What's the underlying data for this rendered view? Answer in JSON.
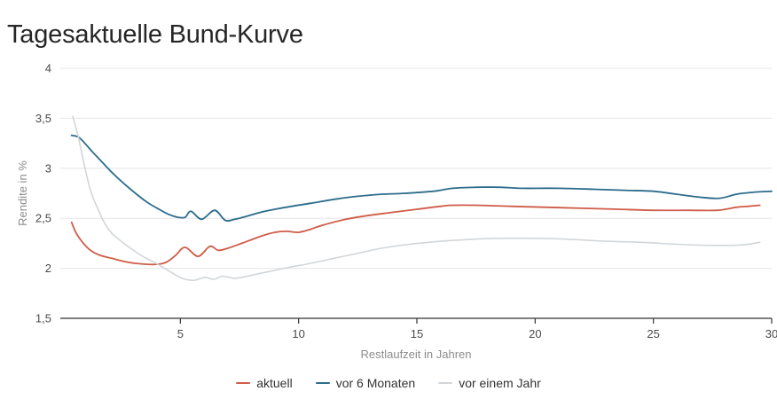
{
  "title": "Tagesaktuelle Bund-Kurve",
  "colors": {
    "accent_red": "#cf5b47",
    "accent_blue": "#2c6c8c",
    "accent_gray": "#d2d6d9",
    "gridline": "#e6e6e6",
    "axis_line": "#333333",
    "tick_text": "#4a4a4a",
    "axis_title_text": "#8c8c8c",
    "legend_text": "#333333"
  },
  "chart_data": {
    "type": "line",
    "title": "Tagesaktuelle Bund-Kurve",
    "xlabel": "Restlaufzeit in Jahren",
    "ylabel": "Rendite in %",
    "xlim": [
      0,
      30
    ],
    "ylim": [
      1.5,
      4
    ],
    "grid": "horizontal",
    "legend_position": "bottom",
    "xticks": {
      "values": [
        5,
        10,
        15,
        20,
        25,
        30
      ],
      "labels": [
        "5",
        "10",
        "15",
        "20",
        "25",
        "30"
      ]
    },
    "yticks": {
      "values": [
        4,
        3.5,
        3,
        2.5,
        2,
        1.5
      ],
      "labels": [
        "4",
        "3,5",
        "3",
        "2,5",
        "2",
        "1,5"
      ]
    },
    "series": [
      {
        "name": "aktuell",
        "color": "#cf5b47",
        "width": 1.8,
        "points": [
          [
            0.4,
            2.46
          ],
          [
            0.6,
            2.35
          ],
          [
            0.9,
            2.25
          ],
          [
            1.2,
            2.18
          ],
          [
            1.6,
            2.13
          ],
          [
            2.1,
            2.1
          ],
          [
            2.6,
            2.07
          ],
          [
            3.1,
            2.05
          ],
          [
            3.6,
            2.04
          ],
          [
            4.0,
            2.04
          ],
          [
            4.4,
            2.06
          ],
          [
            4.8,
            2.13
          ],
          [
            5.2,
            2.21
          ],
          [
            5.75,
            2.12
          ],
          [
            6.25,
            2.22
          ],
          [
            6.6,
            2.18
          ],
          [
            7.0,
            2.2
          ],
          [
            7.6,
            2.25
          ],
          [
            8.4,
            2.32
          ],
          [
            9.0,
            2.36
          ],
          [
            9.5,
            2.37
          ],
          [
            10.0,
            2.36
          ],
          [
            10.5,
            2.39
          ],
          [
            11.0,
            2.43
          ],
          [
            12.0,
            2.49
          ],
          [
            13.0,
            2.53
          ],
          [
            14.0,
            2.56
          ],
          [
            15.0,
            2.59
          ],
          [
            16.0,
            2.62
          ],
          [
            16.5,
            2.63
          ],
          [
            17.5,
            2.63
          ],
          [
            19.0,
            2.62
          ],
          [
            20.5,
            2.61
          ],
          [
            22.0,
            2.6
          ],
          [
            23.5,
            2.59
          ],
          [
            25.0,
            2.58
          ],
          [
            26.5,
            2.58
          ],
          [
            27.7,
            2.58
          ],
          [
            28.5,
            2.61
          ],
          [
            29.0,
            2.62
          ],
          [
            29.5,
            2.63
          ]
        ]
      },
      {
        "name": "vor 6 Monaten",
        "color": "#2c6c8c",
        "width": 1.8,
        "points": [
          [
            0.4,
            3.33
          ],
          [
            0.7,
            3.31
          ],
          [
            1.0,
            3.24
          ],
          [
            1.3,
            3.16
          ],
          [
            1.7,
            3.06
          ],
          [
            2.1,
            2.96
          ],
          [
            2.6,
            2.85
          ],
          [
            3.1,
            2.75
          ],
          [
            3.6,
            2.66
          ],
          [
            4.1,
            2.59
          ],
          [
            4.5,
            2.54
          ],
          [
            4.9,
            2.51
          ],
          [
            5.2,
            2.51
          ],
          [
            5.45,
            2.57
          ],
          [
            5.9,
            2.49
          ],
          [
            6.45,
            2.58
          ],
          [
            6.9,
            2.48
          ],
          [
            7.3,
            2.49
          ],
          [
            7.8,
            2.52
          ],
          [
            8.4,
            2.56
          ],
          [
            9.0,
            2.59
          ],
          [
            9.7,
            2.62
          ],
          [
            10.5,
            2.65
          ],
          [
            11.5,
            2.69
          ],
          [
            12.5,
            2.72
          ],
          [
            13.5,
            2.74
          ],
          [
            14.5,
            2.75
          ],
          [
            15.7,
            2.77
          ],
          [
            16.5,
            2.8
          ],
          [
            17.5,
            2.81
          ],
          [
            18.5,
            2.81
          ],
          [
            19.5,
            2.8
          ],
          [
            21.0,
            2.8
          ],
          [
            22.5,
            2.79
          ],
          [
            23.8,
            2.78
          ],
          [
            25.0,
            2.77
          ],
          [
            26.0,
            2.74
          ],
          [
            27.0,
            2.71
          ],
          [
            27.8,
            2.7
          ],
          [
            28.5,
            2.74
          ],
          [
            29.2,
            2.76
          ],
          [
            30.0,
            2.77
          ]
        ]
      },
      {
        "name": "vor einem Jahr",
        "color": "#d2d6d9",
        "width": 1.6,
        "points": [
          [
            0.45,
            3.52
          ],
          [
            0.7,
            3.3
          ],
          [
            0.95,
            3.02
          ],
          [
            1.2,
            2.78
          ],
          [
            1.5,
            2.6
          ],
          [
            1.8,
            2.45
          ],
          [
            2.1,
            2.35
          ],
          [
            2.5,
            2.27
          ],
          [
            2.9,
            2.2
          ],
          [
            3.4,
            2.12
          ],
          [
            3.9,
            2.06
          ],
          [
            4.4,
            1.99
          ],
          [
            4.9,
            1.92
          ],
          [
            5.2,
            1.89
          ],
          [
            5.6,
            1.88
          ],
          [
            6.05,
            1.91
          ],
          [
            6.4,
            1.89
          ],
          [
            6.8,
            1.92
          ],
          [
            7.3,
            1.9
          ],
          [
            7.8,
            1.92
          ],
          [
            8.4,
            1.95
          ],
          [
            9.0,
            1.98
          ],
          [
            9.6,
            2.01
          ],
          [
            10.5,
            2.05
          ],
          [
            11.5,
            2.1
          ],
          [
            12.5,
            2.15
          ],
          [
            13.5,
            2.2
          ],
          [
            14.7,
            2.24
          ],
          [
            16.0,
            2.27
          ],
          [
            17.3,
            2.29
          ],
          [
            18.5,
            2.3
          ],
          [
            20.0,
            2.3
          ],
          [
            21.5,
            2.29
          ],
          [
            23.0,
            2.27
          ],
          [
            24.5,
            2.26
          ],
          [
            26.0,
            2.24
          ],
          [
            27.2,
            2.23
          ],
          [
            28.4,
            2.23
          ],
          [
            29.0,
            2.24
          ],
          [
            29.5,
            2.26
          ]
        ]
      }
    ]
  },
  "legend": {
    "items": [
      {
        "label": "aktuell",
        "color": "#cf5b47"
      },
      {
        "label": "vor 6 Monaten",
        "color": "#2c6c8c"
      },
      {
        "label": "vor einem Jahr",
        "color": "#d2d6d9"
      }
    ]
  }
}
